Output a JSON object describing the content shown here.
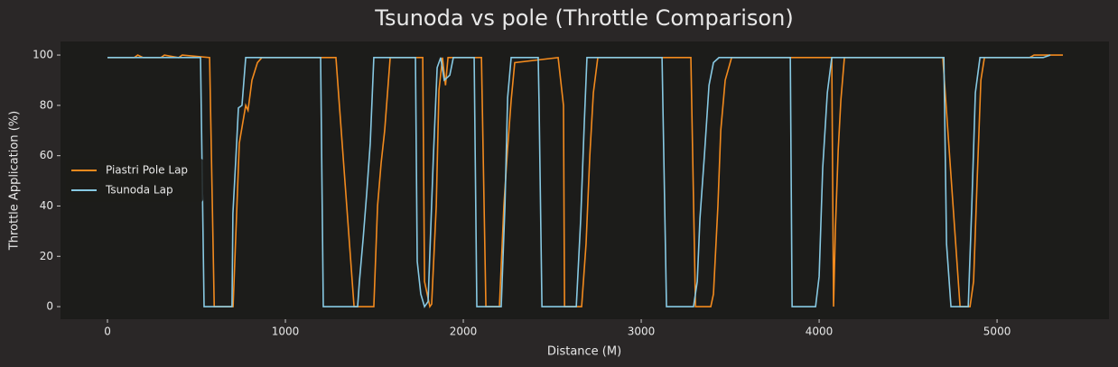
{
  "chart_data": {
    "type": "line",
    "title": "Tsunoda vs pole (Throttle Comparison)",
    "x_label": "Distance (M)",
    "y_label": "Throttle Application (%)",
    "xlim": [
      -264,
      5629
    ],
    "ylim": [
      -5,
      105.4
    ],
    "xticks": [
      0,
      1000,
      2000,
      3000,
      4000,
      5000
    ],
    "yticks": [
      0,
      20,
      40,
      60,
      80,
      100
    ],
    "grid": false,
    "legend": "center left",
    "series": [
      {
        "name": "Piastri Pole Lap",
        "color": "#f28a1e",
        "x": [
          0,
          150,
          170,
          200,
          300,
          320,
          400,
          420,
          574,
          600,
          706,
          741,
          777,
          790,
          812,
          843,
          868,
          1284,
          1386,
          1497,
          1518,
          1538,
          1558,
          1589,
          1772,
          1782,
          1812,
          1822,
          1848,
          1863,
          1883,
          1900,
          1914,
          1944,
          2102,
          2127,
          2203,
          2228,
          2249,
          2269,
          2289,
          2533,
          2563,
          2569,
          2665,
          2690,
          2711,
          2731,
          2756,
          3279,
          3305,
          3391,
          3406,
          3431,
          3447,
          3472,
          3508,
          4071,
          4081,
          4091,
          4107,
          4122,
          4142,
          4695,
          4792,
          4848,
          4868,
          4888,
          4909,
          4929,
          5183,
          5208,
          5370
        ],
        "values": [
          99,
          99,
          100,
          99,
          99,
          100,
          99,
          100,
          99,
          0,
          0,
          65,
          80,
          78,
          90,
          97,
          99,
          99,
          0,
          0,
          40,
          57,
          70,
          99,
          99,
          10,
          0,
          1,
          40,
          86,
          99,
          88,
          99,
          99,
          99,
          0,
          0,
          40,
          63,
          82,
          97,
          99,
          80,
          0,
          0,
          25,
          60,
          85,
          99,
          99,
          0,
          0,
          5,
          40,
          70,
          90,
          99,
          99,
          0,
          30,
          62,
          82,
          99,
          99,
          0,
          0,
          10,
          50,
          90,
          99,
          99,
          100,
          100
        ]
      },
      {
        "name": "Tsunoda Lap",
        "color": "#87c9e3",
        "x": [
          0,
          523,
          543,
          700,
          705,
          726,
          736,
          756,
          777,
          1198,
          1213,
          1406,
          1416,
          1437,
          1457,
          1477,
          1497,
          1731,
          1741,
          1761,
          1782,
          1802,
          1832,
          1853,
          1873,
          1893,
          1924,
          1944,
          2061,
          2076,
          2213,
          2234,
          2249,
          2269,
          2421,
          2426,
          2442,
          2635,
          2660,
          2680,
          2695,
          3117,
          3142,
          3294,
          3315,
          3330,
          3355,
          3381,
          3406,
          3437,
          3838,
          3848,
          3980,
          4000,
          4020,
          4046,
          4071,
          4701,
          4716,
          4741,
          4838,
          4858,
          4878,
          4904,
          5259,
          5299
        ],
        "values": [
          99,
          99,
          0,
          0,
          37,
          65,
          79,
          80,
          99,
          99,
          0,
          0,
          10,
          27,
          45,
          65,
          99,
          99,
          18,
          5,
          0,
          2,
          60,
          95,
          99,
          90,
          92,
          99,
          99,
          0,
          0,
          40,
          83,
          99,
          99,
          80,
          0,
          0,
          35,
          73,
          99,
          99,
          0,
          0,
          10,
          35,
          60,
          88,
          97,
          99,
          99,
          0,
          0,
          12,
          55,
          85,
          99,
          99,
          25,
          0,
          0,
          40,
          85,
          99,
          99,
          100
        ]
      }
    ]
  }
}
